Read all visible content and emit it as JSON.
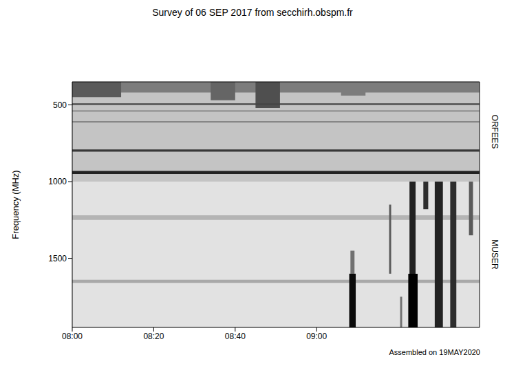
{
  "chart_data": {
    "type": "spectrogram",
    "title": "Survey of 06 SEP 2017 from secchirh.obspm.fr",
    "y_label": "Frequency (MHz)",
    "annotation": "Assembled on 19MAY2020",
    "xlim": [
      480,
      580
    ],
    "xticks": [
      {
        "value": 480,
        "label": "08:00"
      },
      {
        "value": 500,
        "label": "08:20"
      },
      {
        "value": 520,
        "label": "08:40"
      },
      {
        "value": 540,
        "label": "09:00"
      }
    ],
    "ylim": [
      350,
      1950
    ],
    "yticks": [
      500,
      1000,
      1500
    ],
    "instruments": [
      {
        "name": "ORFEES",
        "freq_low": 350,
        "freq_high": 1000
      },
      {
        "name": "MUSER",
        "freq_low": 1000,
        "freq_high": 1950
      }
    ],
    "features": [
      {
        "time_start": 480,
        "time_end": 580,
        "freq_low": 350,
        "freq_high": 420,
        "intensity": 0.45
      },
      {
        "time_start": 480,
        "time_end": 492,
        "freq_low": 350,
        "freq_high": 450,
        "intensity": 0.6
      },
      {
        "time_start": 514,
        "time_end": 520,
        "freq_low": 350,
        "freq_high": 470,
        "intensity": 0.55
      },
      {
        "time_start": 525,
        "time_end": 531,
        "freq_low": 350,
        "freq_high": 520,
        "intensity": 0.65
      },
      {
        "time_start": 546,
        "time_end": 552,
        "freq_low": 350,
        "freq_high": 440,
        "intensity": 0.45
      },
      {
        "time_start": 480,
        "time_end": 580,
        "freq_low": 490,
        "freq_high": 500,
        "intensity": 0.7
      },
      {
        "time_start": 480,
        "time_end": 580,
        "freq_low": 535,
        "freq_high": 545,
        "intensity": 0.35
      },
      {
        "time_start": 480,
        "time_end": 580,
        "freq_low": 605,
        "freq_high": 615,
        "intensity": 0.4
      },
      {
        "time_start": 480,
        "time_end": 580,
        "freq_low": 790,
        "freq_high": 805,
        "intensity": 0.75
      },
      {
        "time_start": 480,
        "time_end": 580,
        "freq_low": 930,
        "freq_high": 950,
        "intensity": 0.85
      },
      {
        "time_start": 480,
        "time_end": 580,
        "freq_low": 1220,
        "freq_high": 1250,
        "intensity": 0.2
      },
      {
        "time_start": 480,
        "time_end": 580,
        "freq_low": 1640,
        "freq_high": 1660,
        "intensity": 0.25
      },
      {
        "time_start": 548,
        "time_end": 549.6,
        "freq_low": 1600,
        "freq_high": 1950,
        "intensity": 0.95
      },
      {
        "time_start": 548.3,
        "time_end": 549.3,
        "freq_low": 1450,
        "freq_high": 1600,
        "intensity": 0.5
      },
      {
        "time_start": 557.8,
        "time_end": 558.3,
        "freq_low": 1150,
        "freq_high": 1600,
        "intensity": 0.6
      },
      {
        "time_start": 560.5,
        "time_end": 561,
        "freq_low": 1750,
        "freq_high": 1950,
        "intensity": 0.5
      },
      {
        "time_start": 562.5,
        "time_end": 564.8,
        "freq_low": 1600,
        "freq_high": 1950,
        "intensity": 1
      },
      {
        "time_start": 562.8,
        "time_end": 564.3,
        "freq_low": 1000,
        "freq_high": 1600,
        "intensity": 0.85
      },
      {
        "time_start": 566.2,
        "time_end": 567.4,
        "freq_low": 1000,
        "freq_high": 1180,
        "intensity": 0.8
      },
      {
        "time_start": 569,
        "time_end": 571,
        "freq_low": 1000,
        "freq_high": 1950,
        "intensity": 0.85
      },
      {
        "time_start": 572.8,
        "time_end": 574.3,
        "freq_low": 1000,
        "freq_high": 1950,
        "intensity": 0.8
      },
      {
        "time_start": 577.4,
        "time_end": 578.4,
        "freq_low": 1000,
        "freq_high": 1350,
        "intensity": 0.6
      }
    ]
  }
}
